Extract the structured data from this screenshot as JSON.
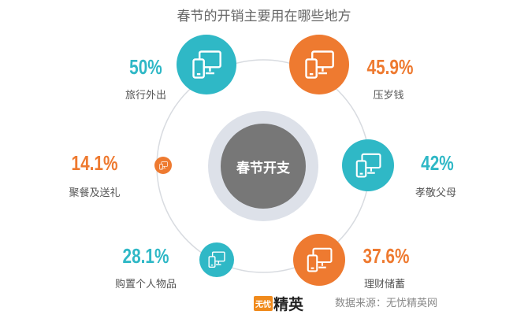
{
  "title": "春节的开销主要用在哪些地方",
  "center_label": "春节开支",
  "colors": {
    "teal": "#2fb8c6",
    "orange": "#ee7a30",
    "center": "#777777",
    "ring": "#dde1e9"
  },
  "chart_data": {
    "type": "bubble-infographic",
    "title": "春节的开销主要用在哪些地方",
    "unit": "%",
    "items": [
      {
        "label": "旅行外出",
        "value": 50,
        "display": "50%",
        "color": "#2fb8c6",
        "icon": "devices-icon"
      },
      {
        "label": "压岁钱",
        "value": 45.9,
        "display": "45.9%",
        "color": "#ee7a30",
        "icon": "devices-icon"
      },
      {
        "label": "孝敬父母",
        "value": 42,
        "display": "42%",
        "color": "#2fb8c6",
        "icon": "devices-icon"
      },
      {
        "label": "理财储蓄",
        "value": 37.6,
        "display": "37.6%",
        "color": "#ee7a30",
        "icon": "devices-icon"
      },
      {
        "label": "购置个人物品",
        "value": 28.1,
        "display": "28.1%",
        "color": "#2fb8c6",
        "icon": "devices-icon"
      },
      {
        "label": "聚餐及送礼",
        "value": 14.1,
        "display": "14.1%",
        "color": "#ee7a30",
        "icon": "devices-icon"
      }
    ]
  },
  "logo": {
    "badge": "无忧",
    "text": "精英"
  },
  "source": "数据来源：无忧精英网"
}
